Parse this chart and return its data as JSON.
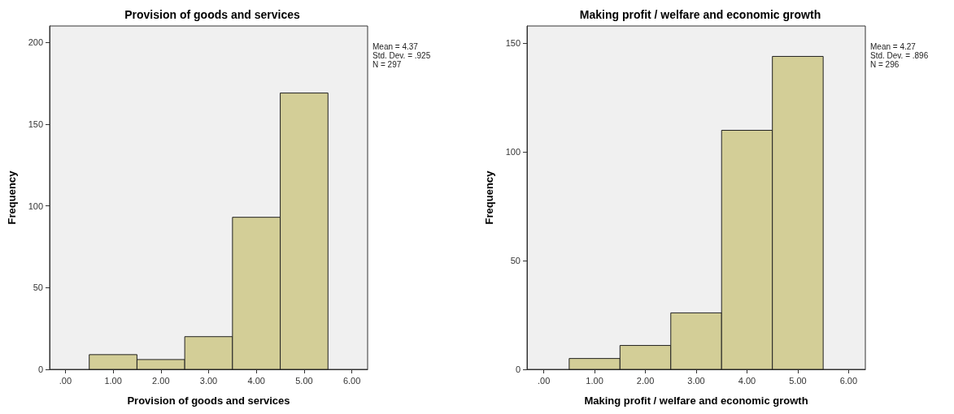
{
  "chart_data": [
    {
      "type": "histogram",
      "title": "Provision of goods and services",
      "xlabel": "Provision of goods and services",
      "ylabel": "Frequency",
      "bins": [
        0.5,
        1.5,
        2.5,
        3.5,
        4.5,
        5.5
      ],
      "values": [
        9,
        6,
        20,
        93,
        169
      ],
      "color": "#d3ce97",
      "xlim": [
        -0.33,
        6.33
      ],
      "xticks": [
        {
          "value": 0,
          "label": ".00"
        },
        {
          "value": 1,
          "label": "1.00"
        },
        {
          "value": 2,
          "label": "2.00"
        },
        {
          "value": 3,
          "label": "3.00"
        },
        {
          "value": 4,
          "label": "4.00"
        },
        {
          "value": 5,
          "label": "5.00"
        },
        {
          "value": 6,
          "label": "6.00"
        }
      ],
      "ylim": [
        0,
        210
      ],
      "yticks": [
        0,
        50,
        100,
        150,
        200
      ],
      "grid": false,
      "annotations": [
        "Mean = 4.37",
        "Std. Dev. = .925",
        "N = 297"
      ]
    },
    {
      "type": "histogram",
      "title": "Making profit / welfare and economic growth",
      "xlabel": "Making profit / welfare and economic growth",
      "ylabel": "Frequency",
      "bins": [
        0.5,
        1.5,
        2.5,
        3.5,
        4.5,
        5.5
      ],
      "values": [
        5,
        11,
        26,
        110,
        144
      ],
      "color": "#d3ce97",
      "xlim": [
        -0.33,
        6.33
      ],
      "xticks": [
        {
          "value": 0,
          "label": ".00"
        },
        {
          "value": 1,
          "label": "1.00"
        },
        {
          "value": 2,
          "label": "2.00"
        },
        {
          "value": 3,
          "label": "3.00"
        },
        {
          "value": 4,
          "label": "4.00"
        },
        {
          "value": 5,
          "label": "5.00"
        },
        {
          "value": 6,
          "label": "6.00"
        }
      ],
      "ylim": [
        0,
        158
      ],
      "yticks": [
        0,
        50,
        100,
        150
      ],
      "grid": false,
      "annotations": [
        "Mean = 4.27",
        "Std. Dev. = .896",
        "N = 296"
      ]
    }
  ]
}
